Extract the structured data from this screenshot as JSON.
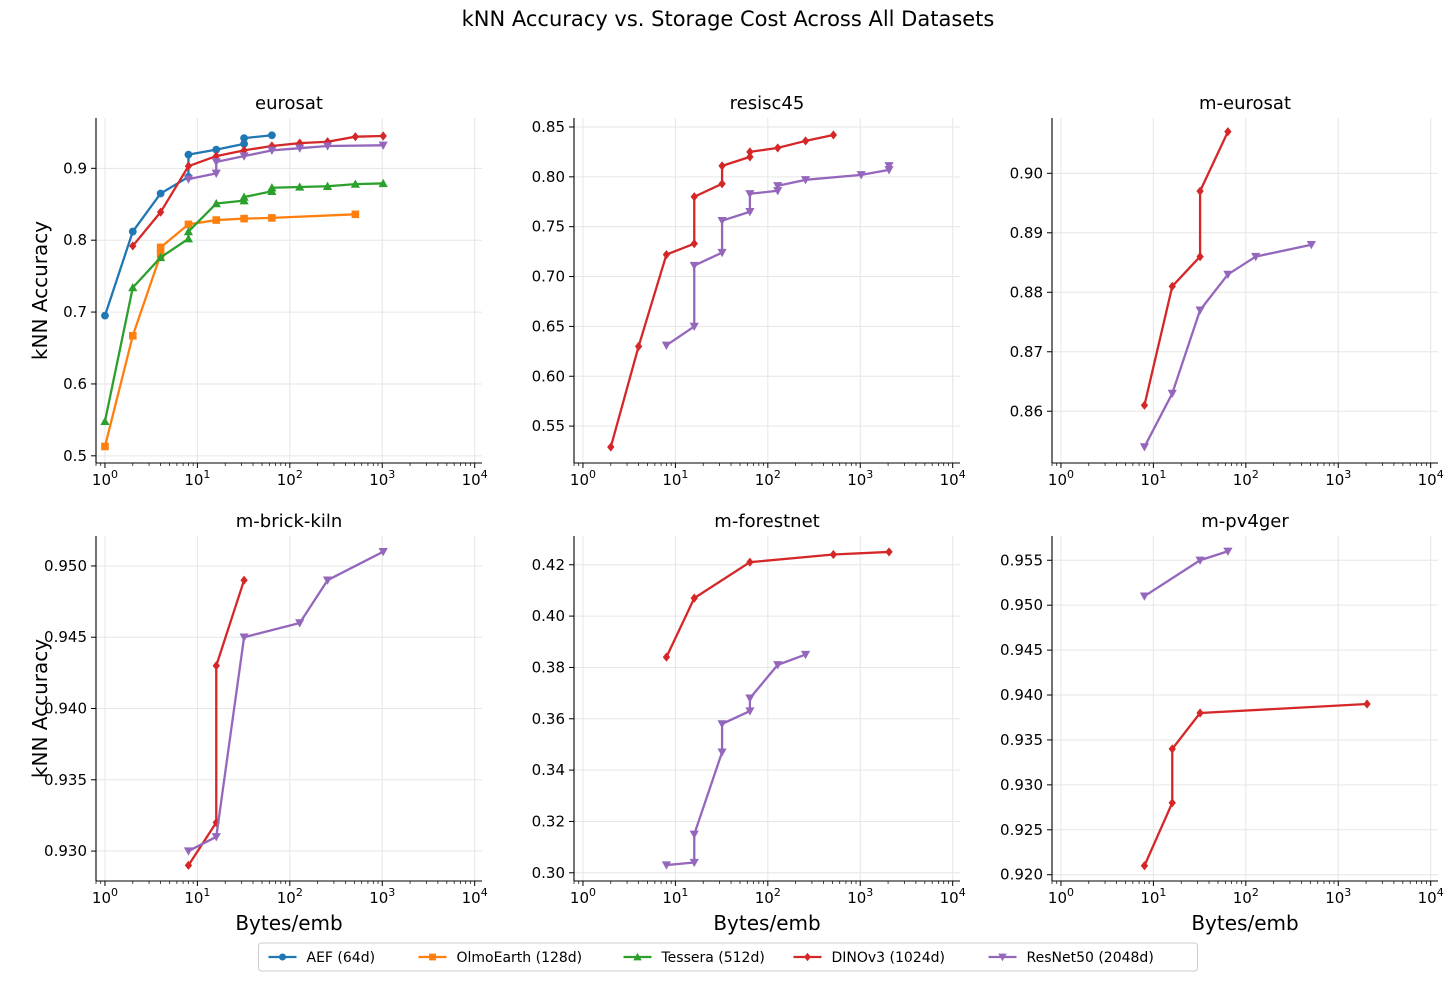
{
  "figure": {
    "title": "kNN Accuracy vs. Storage Cost Across All Datasets"
  },
  "series_styles": [
    {
      "name": "AEF (64d)",
      "color": "#1f77b4",
      "marker": "circle"
    },
    {
      "name": "OlmoEarth (128d)",
      "color": "#ff7f0e",
      "marker": "square"
    },
    {
      "name": "Tessera (512d)",
      "color": "#2ca02c",
      "marker": "triangle-up"
    },
    {
      "name": "DINOv3 (1024d)",
      "color": "#d62728",
      "marker": "diamond"
    },
    {
      "name": "ResNet50 (2048d)",
      "color": "#9467bd",
      "marker": "triangle-down"
    }
  ],
  "legend": {
    "placement": "bottom-center",
    "entries": [
      "AEF (64d)",
      "OlmoEarth (128d)",
      "Tessera (512d)",
      "DINOv3 (1024d)",
      "ResNet50 (2048d)"
    ]
  },
  "chart_data": [
    {
      "type": "line",
      "title": "eurosat",
      "xlabel": "",
      "ylabel": "kNN Accuracy",
      "xscale": "log",
      "xlim": [
        0.8,
        12000
      ],
      "ylim": [
        0.49,
        0.97
      ],
      "xticks": [
        1,
        10,
        100,
        1000,
        10000
      ],
      "xtick_labels": [
        "10^0",
        "10^1",
        "10^2",
        "10^3",
        "10^4"
      ],
      "yticks": [
        0.5,
        0.6,
        0.7,
        0.8,
        0.9
      ],
      "ytick_labels": [
        "0.5",
        "0.6",
        "0.7",
        "0.8",
        "0.9"
      ],
      "grid": true,
      "series": [
        {
          "name": "AEF (64d)",
          "x": [
            1,
            2,
            4,
            8,
            8,
            16,
            32,
            32,
            64
          ],
          "y": [
            0.695,
            0.812,
            0.865,
            0.888,
            0.919,
            0.926,
            0.934,
            0.942,
            0.946
          ]
        },
        {
          "name": "OlmoEarth (128d)",
          "x": [
            1,
            2,
            4,
            4,
            8,
            16,
            32,
            64,
            512
          ],
          "y": [
            0.513,
            0.667,
            0.78,
            0.79,
            0.822,
            0.828,
            0.83,
            0.831,
            0.836
          ]
        },
        {
          "name": "Tessera (512d)",
          "x": [
            1,
            2,
            4,
            8,
            8,
            16,
            32,
            32,
            64,
            64,
            128,
            256,
            512,
            1024
          ],
          "y": [
            0.548,
            0.734,
            0.776,
            0.802,
            0.812,
            0.851,
            0.855,
            0.86,
            0.868,
            0.873,
            0.874,
            0.875,
            0.878,
            0.879
          ]
        },
        {
          "name": "DINOv3 (1024d)",
          "x": [
            2,
            4,
            8,
            16,
            32,
            64,
            128,
            256,
            512,
            1024
          ],
          "y": [
            0.792,
            0.839,
            0.903,
            0.917,
            0.925,
            0.931,
            0.935,
            0.937,
            0.944,
            0.945
          ]
        },
        {
          "name": "ResNet50 (2048d)",
          "x": [
            8,
            16,
            16,
            32,
            64,
            128,
            256,
            1024
          ],
          "y": [
            0.885,
            0.893,
            0.909,
            0.917,
            0.925,
            0.928,
            0.931,
            0.932
          ]
        }
      ]
    },
    {
      "type": "line",
      "title": "resisc45",
      "xlabel": "",
      "ylabel": "",
      "xscale": "log",
      "xlim": [
        0.8,
        12000
      ],
      "ylim": [
        0.513,
        0.859
      ],
      "xticks": [
        1,
        10,
        100,
        1000,
        10000
      ],
      "xtick_labels": [
        "10^0",
        "10^1",
        "10^2",
        "10^3",
        "10^4"
      ],
      "yticks": [
        0.55,
        0.6,
        0.65,
        0.7,
        0.75,
        0.8,
        0.85
      ],
      "ytick_labels": [
        "0.55",
        "0.60",
        "0.65",
        "0.70",
        "0.75",
        "0.80",
        "0.85"
      ],
      "grid": true,
      "series": [
        {
          "name": "DINOv3 (1024d)",
          "x": [
            2,
            4,
            8,
            16,
            16,
            32,
            32,
            64,
            64,
            128,
            256,
            512
          ],
          "y": [
            0.529,
            0.63,
            0.722,
            0.733,
            0.78,
            0.793,
            0.811,
            0.82,
            0.825,
            0.829,
            0.836,
            0.842
          ]
        },
        {
          "name": "ResNet50 (2048d)",
          "x": [
            8,
            16,
            16,
            32,
            32,
            64,
            64,
            128,
            128,
            256,
            1024,
            2048,
            2048
          ],
          "y": [
            0.631,
            0.65,
            0.711,
            0.724,
            0.756,
            0.765,
            0.783,
            0.786,
            0.791,
            0.797,
            0.802,
            0.807,
            0.811
          ]
        }
      ]
    },
    {
      "type": "line",
      "title": "m-eurosat",
      "xlabel": "",
      "ylabel": "",
      "xscale": "log",
      "xlim": [
        0.8,
        12000
      ],
      "ylim": [
        0.8513,
        0.9093
      ],
      "xticks": [
        1,
        10,
        100,
        1000,
        10000
      ],
      "xtick_labels": [
        "10^0",
        "10^1",
        "10^2",
        "10^3",
        "10^4"
      ],
      "yticks": [
        0.86,
        0.87,
        0.88,
        0.89,
        0.9
      ],
      "ytick_labels": [
        "0.86",
        "0.87",
        "0.88",
        "0.89",
        "0.90"
      ],
      "grid": true,
      "series": [
        {
          "name": "DINOv3 (1024d)",
          "x": [
            8,
            16,
            32,
            32,
            64
          ],
          "y": [
            0.861,
            0.881,
            0.886,
            0.897,
            0.907
          ]
        },
        {
          "name": "ResNet50 (2048d)",
          "x": [
            8,
            16,
            32,
            64,
            128,
            512
          ],
          "y": [
            0.854,
            0.863,
            0.877,
            0.883,
            0.886,
            0.888
          ]
        }
      ]
    },
    {
      "type": "line",
      "title": "m-brick-kiln",
      "xlabel": "Bytes/emb",
      "ylabel": "kNN Accuracy",
      "xscale": "log",
      "xlim": [
        0.8,
        12000
      ],
      "ylim": [
        0.9279,
        0.9521
      ],
      "xticks": [
        1,
        10,
        100,
        1000,
        10000
      ],
      "xtick_labels": [
        "10^0",
        "10^1",
        "10^2",
        "10^3",
        "10^4"
      ],
      "yticks": [
        0.93,
        0.935,
        0.94,
        0.945,
        0.95
      ],
      "ytick_labels": [
        "0.930",
        "0.935",
        "0.940",
        "0.945",
        "0.950"
      ],
      "grid": true,
      "series": [
        {
          "name": "DINOv3 (1024d)",
          "x": [
            8,
            16,
            16,
            32
          ],
          "y": [
            0.929,
            0.932,
            0.943,
            0.949
          ]
        },
        {
          "name": "ResNet50 (2048d)",
          "x": [
            8,
            16,
            32,
            128,
            256,
            1024
          ],
          "y": [
            0.93,
            0.931,
            0.945,
            0.946,
            0.949,
            0.951
          ]
        }
      ]
    },
    {
      "type": "line",
      "title": "m-forestnet",
      "xlabel": "Bytes/emb",
      "ylabel": "",
      "xscale": "log",
      "xlim": [
        0.8,
        12000
      ],
      "ylim": [
        0.2968,
        0.4312
      ],
      "xticks": [
        1,
        10,
        100,
        1000,
        10000
      ],
      "xtick_labels": [
        "10^0",
        "10^1",
        "10^2",
        "10^3",
        "10^4"
      ],
      "yticks": [
        0.3,
        0.32,
        0.34,
        0.36,
        0.38,
        0.4,
        0.42
      ],
      "ytick_labels": [
        "0.30",
        "0.32",
        "0.34",
        "0.36",
        "0.38",
        "0.40",
        "0.42"
      ],
      "grid": true,
      "series": [
        {
          "name": "DINOv3 (1024d)",
          "x": [
            8,
            16,
            64,
            512,
            2048
          ],
          "y": [
            0.384,
            0.407,
            0.421,
            0.424,
            0.425
          ]
        },
        {
          "name": "ResNet50 (2048d)",
          "x": [
            8,
            16,
            16,
            32,
            32,
            64,
            64,
            128,
            256
          ],
          "y": [
            0.303,
            0.304,
            0.315,
            0.347,
            0.358,
            0.363,
            0.368,
            0.381,
            0.385
          ]
        }
      ]
    },
    {
      "type": "line",
      "title": "m-pv4ger",
      "xlabel": "Bytes/emb",
      "ylabel": "",
      "xscale": "log",
      "xlim": [
        0.8,
        12000
      ],
      "ylim": [
        0.9193,
        0.9577
      ],
      "xticks": [
        1,
        10,
        100,
        1000,
        10000
      ],
      "xtick_labels": [
        "10^0",
        "10^1",
        "10^2",
        "10^3",
        "10^4"
      ],
      "yticks": [
        0.92,
        0.925,
        0.93,
        0.935,
        0.94,
        0.945,
        0.95,
        0.955
      ],
      "ytick_labels": [
        "0.920",
        "0.925",
        "0.930",
        "0.935",
        "0.940",
        "0.945",
        "0.950",
        "0.955"
      ],
      "grid": true,
      "series": [
        {
          "name": "DINOv3 (1024d)",
          "x": [
            8,
            16,
            16,
            32,
            2048
          ],
          "y": [
            0.921,
            0.928,
            0.934,
            0.938,
            0.939
          ]
        },
        {
          "name": "ResNet50 (2048d)",
          "x": [
            8,
            32,
            64
          ],
          "y": [
            0.951,
            0.955,
            0.956
          ]
        }
      ]
    }
  ]
}
